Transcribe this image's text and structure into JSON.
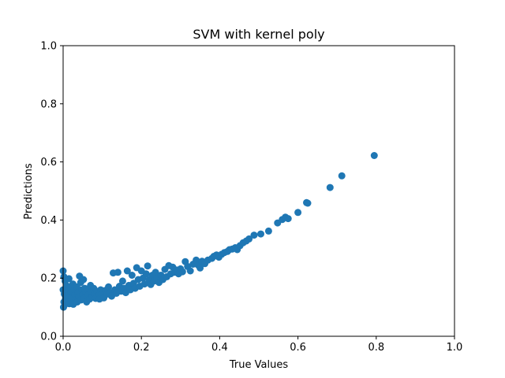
{
  "chart_data": {
    "type": "scatter",
    "title": "SVM with kernel poly",
    "xlabel": "True Values",
    "ylabel": "Predictions",
    "xlim": [
      0.0,
      1.0
    ],
    "ylim": [
      0.0,
      1.0
    ],
    "xticks": [
      "0.0",
      "0.2",
      "0.4",
      "0.6",
      "0.8",
      "1.0"
    ],
    "yticks": [
      "0.0",
      "0.2",
      "0.4",
      "0.6",
      "0.8",
      "1.0"
    ],
    "grid": false,
    "marker_color": "#1f77b4",
    "points": [
      [
        0.0,
        0.225
      ],
      [
        0.002,
        0.205
      ],
      [
        0.005,
        0.19
      ],
      [
        0.008,
        0.175
      ],
      [
        0.0,
        0.16
      ],
      [
        0.003,
        0.145
      ],
      [
        0.006,
        0.13
      ],
      [
        0.002,
        0.118
      ],
      [
        0.004,
        0.108
      ],
      [
        0.001,
        0.1
      ],
      [
        0.008,
        0.155
      ],
      [
        0.01,
        0.14
      ],
      [
        0.012,
        0.12
      ],
      [
        0.015,
        0.198
      ],
      [
        0.018,
        0.17
      ],
      [
        0.02,
        0.15
      ],
      [
        0.022,
        0.132
      ],
      [
        0.016,
        0.112
      ],
      [
        0.025,
        0.18
      ],
      [
        0.028,
        0.16
      ],
      [
        0.03,
        0.143
      ],
      [
        0.032,
        0.125
      ],
      [
        0.026,
        0.11
      ],
      [
        0.035,
        0.17
      ],
      [
        0.038,
        0.15
      ],
      [
        0.04,
        0.135
      ],
      [
        0.036,
        0.118
      ],
      [
        0.042,
        0.207
      ],
      [
        0.045,
        0.185
      ],
      [
        0.048,
        0.16
      ],
      [
        0.05,
        0.142
      ],
      [
        0.046,
        0.125
      ],
      [
        0.052,
        0.195
      ],
      [
        0.055,
        0.165
      ],
      [
        0.058,
        0.148
      ],
      [
        0.054,
        0.13
      ],
      [
        0.06,
        0.118
      ],
      [
        0.062,
        0.16
      ],
      [
        0.065,
        0.143
      ],
      [
        0.068,
        0.128
      ],
      [
        0.07,
        0.175
      ],
      [
        0.072,
        0.152
      ],
      [
        0.075,
        0.135
      ],
      [
        0.078,
        0.165
      ],
      [
        0.08,
        0.148
      ],
      [
        0.083,
        0.13
      ],
      [
        0.086,
        0.155
      ],
      [
        0.09,
        0.14
      ],
      [
        0.093,
        0.128
      ],
      [
        0.096,
        0.16
      ],
      [
        0.1,
        0.145
      ],
      [
        0.104,
        0.132
      ],
      [
        0.108,
        0.158
      ],
      [
        0.112,
        0.145
      ],
      [
        0.116,
        0.17
      ],
      [
        0.12,
        0.15
      ],
      [
        0.124,
        0.138
      ],
      [
        0.128,
        0.218
      ],
      [
        0.132,
        0.16
      ],
      [
        0.136,
        0.148
      ],
      [
        0.14,
        0.22
      ],
      [
        0.144,
        0.172
      ],
      [
        0.148,
        0.155
      ],
      [
        0.152,
        0.19
      ],
      [
        0.156,
        0.165
      ],
      [
        0.16,
        0.15
      ],
      [
        0.164,
        0.225
      ],
      [
        0.168,
        0.175
      ],
      [
        0.172,
        0.16
      ],
      [
        0.176,
        0.21
      ],
      [
        0.18,
        0.182
      ],
      [
        0.184,
        0.165
      ],
      [
        0.188,
        0.236
      ],
      [
        0.192,
        0.195
      ],
      [
        0.196,
        0.172
      ],
      [
        0.2,
        0.225
      ],
      [
        0.204,
        0.2
      ],
      [
        0.208,
        0.18
      ],
      [
        0.212,
        0.215
      ],
      [
        0.216,
        0.242
      ],
      [
        0.22,
        0.195
      ],
      [
        0.224,
        0.178
      ],
      [
        0.228,
        0.21
      ],
      [
        0.232,
        0.19
      ],
      [
        0.236,
        0.22
      ],
      [
        0.24,
        0.2
      ],
      [
        0.245,
        0.185
      ],
      [
        0.25,
        0.21
      ],
      [
        0.255,
        0.195
      ],
      [
        0.26,
        0.23
      ],
      [
        0.265,
        0.205
      ],
      [
        0.27,
        0.243
      ],
      [
        0.275,
        0.215
      ],
      [
        0.28,
        0.238
      ],
      [
        0.285,
        0.22
      ],
      [
        0.29,
        0.228
      ],
      [
        0.295,
        0.215
      ],
      [
        0.3,
        0.232
      ],
      [
        0.305,
        0.222
      ],
      [
        0.312,
        0.257
      ],
      [
        0.318,
        0.24
      ],
      [
        0.325,
        0.225
      ],
      [
        0.332,
        0.248
      ],
      [
        0.34,
        0.262
      ],
      [
        0.345,
        0.245
      ],
      [
        0.35,
        0.235
      ],
      [
        0.355,
        0.258
      ],
      [
        0.362,
        0.25
      ],
      [
        0.37,
        0.262
      ],
      [
        0.38,
        0.268
      ],
      [
        0.385,
        0.275
      ],
      [
        0.392,
        0.28
      ],
      [
        0.398,
        0.272
      ],
      [
        0.405,
        0.282
      ],
      [
        0.412,
        0.288
      ],
      [
        0.42,
        0.292
      ],
      [
        0.425,
        0.298
      ],
      [
        0.432,
        0.3
      ],
      [
        0.44,
        0.305
      ],
      [
        0.445,
        0.298
      ],
      [
        0.452,
        0.312
      ],
      [
        0.46,
        0.322
      ],
      [
        0.468,
        0.328
      ],
      [
        0.475,
        0.335
      ],
      [
        0.488,
        0.348
      ],
      [
        0.505,
        0.352
      ],
      [
        0.525,
        0.362
      ],
      [
        0.548,
        0.39
      ],
      [
        0.56,
        0.402
      ],
      [
        0.568,
        0.41
      ],
      [
        0.575,
        0.405
      ],
      [
        0.6,
        0.426
      ],
      [
        0.622,
        0.46
      ],
      [
        0.625,
        0.458
      ],
      [
        0.682,
        0.512
      ],
      [
        0.712,
        0.552
      ],
      [
        0.795,
        0.622
      ]
    ]
  }
}
